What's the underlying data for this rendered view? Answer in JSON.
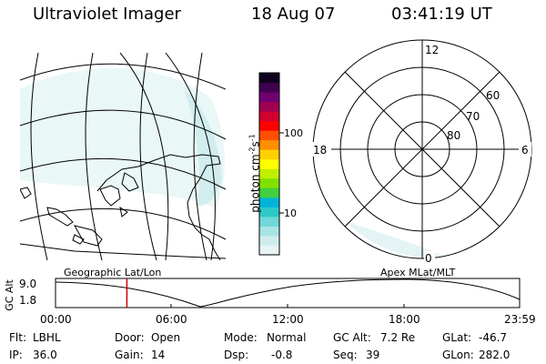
{
  "header": {
    "instrument": "Ultraviolet Imager",
    "date": "18 Aug 07",
    "time": "03:41:19 UT"
  },
  "left_panel": {
    "label": "Geographic Lat/Lon"
  },
  "right_panel": {
    "label": "Apex MLat/MLT",
    "mlt_labels": [
      "12",
      "18",
      "6",
      "0"
    ],
    "lat_labels": [
      "60",
      "70",
      "80"
    ]
  },
  "colorbar": {
    "unit_label": "photon cm",
    "unit_sup1": "-2",
    "unit_mid": "s",
    "unit_sup2": "-1",
    "ticks": [
      "100",
      "10"
    ],
    "colors": [
      "#e8f4f4",
      "#d0eded",
      "#a8e4e4",
      "#70d8d8",
      "#30c8c8",
      "#00b4d8",
      "#40d040",
      "#80e000",
      "#c0f000",
      "#ffff00",
      "#ffd000",
      "#ff9000",
      "#ff5000",
      "#ff0000",
      "#d00030",
      "#a00050",
      "#700070",
      "#400050",
      "#100020"
    ]
  },
  "altitude_plot": {
    "ylabel": "GC Alt",
    "yticks": [
      "9.0",
      "1.8"
    ],
    "xticks": [
      "00:00",
      "06:00",
      "12:00",
      "18:00",
      "23:59"
    ],
    "current_time_hours": 3.69,
    "marker_color": "#cc0000"
  },
  "info": {
    "filter_label": "Flt:",
    "filter": "LBHL",
    "ip_label": "IP:",
    "ip": "36.0",
    "door_label": "Door:",
    "door": "Open",
    "gain_label": "Gain:",
    "gain": "14",
    "mode_label": "Mode:",
    "mode": "Normal",
    "dsp_label": "Dsp:",
    "dsp": "-0.8",
    "gcalt_label": "GC Alt:",
    "gcalt": "7.2 Re",
    "seq_label": "Seq:",
    "seq": "39",
    "glat_label": "GLat:",
    "glat": "-46.7",
    "glon_label": "GLon:",
    "glon": "282.0"
  }
}
